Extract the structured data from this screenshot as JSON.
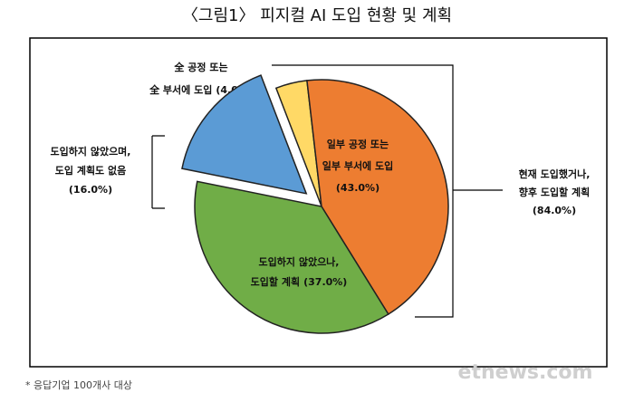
{
  "chart_data": {
    "type": "pie",
    "title": "〈그림1〉 피지컬 AI 도입 현황 및 계획",
    "categories": [
      [
        "全 공정 또는",
        "全 부서에 도입"
      ],
      [
        "일부 공정 또는",
        "일부 부서에 도입"
      ],
      [
        "도입하지 않았으나,",
        "도입할 계획"
      ],
      [
        "도입하지 않았으며,",
        "도입 계획도 없음"
      ]
    ],
    "values": [
      4.0,
      43.0,
      37.0,
      16.0
    ],
    "value_labels": [
      "(4.0%)",
      "(43.0%)",
      "(37.0%)",
      "(16.0%)"
    ],
    "colors": [
      "#ffd966",
      "#ed7d31",
      "#70ad47",
      "#5b9bd5"
    ],
    "annotation": {
      "lines": [
        "현재 도입했거나,",
        "향후 도입할 계획"
      ],
      "value": 84.0,
      "value_label": "(84.0%)"
    },
    "note": "* 응답기업 100개사 대상",
    "watermark": "etnews.com"
  }
}
